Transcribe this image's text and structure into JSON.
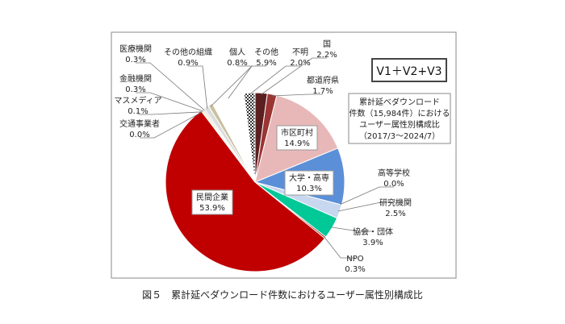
{
  "chart_data": {
    "type": "pie",
    "start": "12 o'clock, clockwise",
    "legend_box": "V1＋V2+V3",
    "info_box": [
      "累計延べダウンロード",
      "件数（15,984件）における",
      "ユーザー属性別構成比",
      "（2017/3〜2024/7）"
    ],
    "slices": [
      {
        "name": "国",
        "value": 2.2,
        "label": "2.2%",
        "color": "#5c1f1f"
      },
      {
        "name": "都道府県",
        "value": 1.7,
        "label": "1.7%",
        "color": "#9c3434"
      },
      {
        "name": "市区町村",
        "value": 14.9,
        "label": "14.9%",
        "color": "#e8b8b8"
      },
      {
        "name": "大学・高専",
        "value": 10.3,
        "label": "10.3%",
        "color": "#5b8fd8"
      },
      {
        "name": "高等学校",
        "value": 0.0,
        "label": "0.0%",
        "color": "#3a6fb8"
      },
      {
        "name": "研究機関",
        "value": 2.5,
        "label": "2.5%",
        "color": "#c7d7ef"
      },
      {
        "name": "協会・団体",
        "value": 3.9,
        "label": "3.9%",
        "color": "#00c896"
      },
      {
        "name": "NPO",
        "value": 0.3,
        "label": "0.3%",
        "color": "#a02020"
      },
      {
        "name": "民間企業",
        "value": 53.9,
        "label": "53.9%",
        "color": "#c00000"
      },
      {
        "name": "交通事業者",
        "value": 0.0,
        "label": "0.0%",
        "color": "#888888"
      },
      {
        "name": "マスメディア",
        "value": 0.1,
        "label": "0.1%",
        "color": "#f0c800"
      },
      {
        "name": "金融機関",
        "value": 0.3,
        "label": "0.3%",
        "color": "#f5e8a0"
      },
      {
        "name": "医療機関",
        "value": 0.3,
        "label": "0.3%",
        "color": "#d8d8d8"
      },
      {
        "name": "その他の組織",
        "value": 0.9,
        "label": "0.9%",
        "color": "#dcdcdc"
      },
      {
        "name": "個人",
        "value": 0.8,
        "label": "0.8%",
        "color": "#c8c0a0"
      },
      {
        "name": "その他",
        "value": 5.9,
        "label": "5.9%",
        "color": "#ffffff"
      },
      {
        "name": "不明",
        "value": 2.0,
        "label": "2.0%",
        "color": "checkered"
      }
    ]
  },
  "caption": "図５　累計延べダウンロード件数におけるユーザー属性別構成比"
}
